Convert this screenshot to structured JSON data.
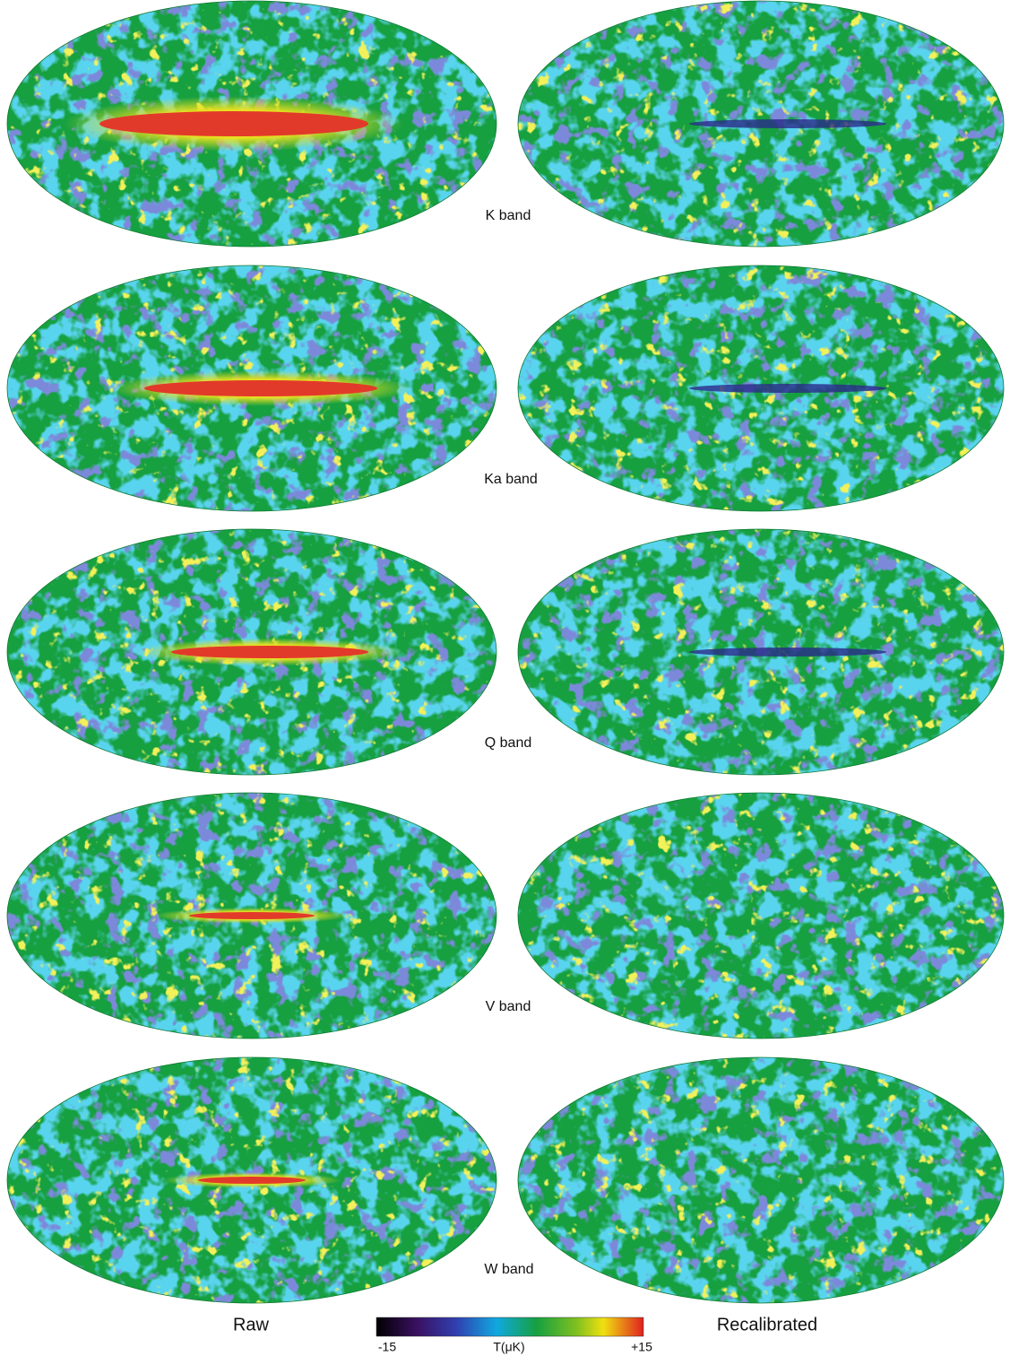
{
  "rows": [
    {
      "label": "K band"
    },
    {
      "label": "Ka band"
    },
    {
      "label": "Q band"
    },
    {
      "label": "V band"
    },
    {
      "label": "W band"
    }
  ],
  "columns": [
    "Raw",
    "Recalibrated"
  ],
  "colorbar": {
    "min_label": "-15",
    "title": "T(μK)",
    "max_label": "+15"
  }
}
